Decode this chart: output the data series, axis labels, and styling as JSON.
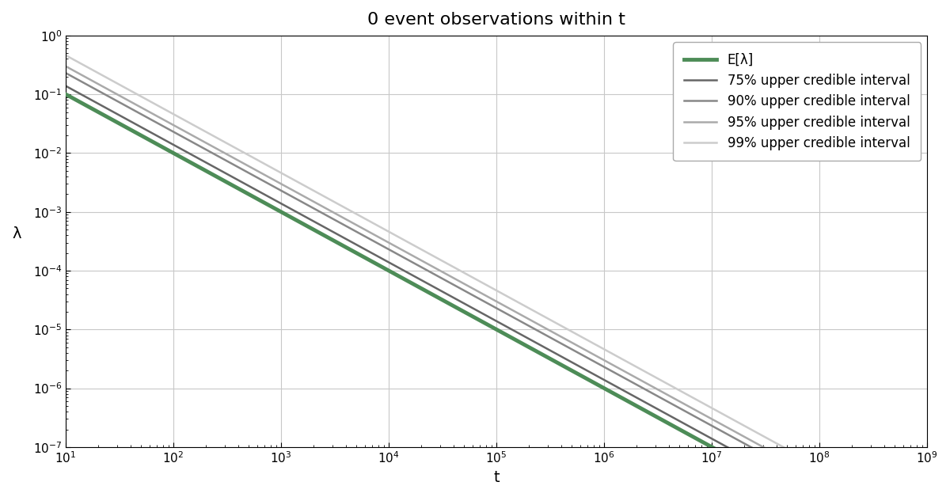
{
  "title": "0 event observations within t",
  "xlabel": "t",
  "ylabel": "λ",
  "xlim_log": [
    1,
    9
  ],
  "ylim_log": [
    -7,
    0
  ],
  "expected_label": "E[λ]",
  "expected_color": "#4d8c57",
  "expected_linewidth": 3.5,
  "intervals": [
    {
      "label": "75% upper credible interval",
      "confidence": 0.75,
      "color": "#666666",
      "linewidth": 1.8
    },
    {
      "label": "90% upper credible interval",
      "confidence": 0.9,
      "color": "#888888",
      "linewidth": 1.8
    },
    {
      "label": "95% upper credible interval",
      "confidence": 0.95,
      "color": "#aaaaaa",
      "linewidth": 1.8
    },
    {
      "label": "99% upper credible interval",
      "confidence": 0.99,
      "color": "#cccccc",
      "linewidth": 1.8
    }
  ],
  "t_start_exp": 1,
  "t_end_exp": 9,
  "n_points": 500,
  "background_color": "#ffffff",
  "grid_color": "#c8c8c8",
  "legend_loc": "upper right"
}
